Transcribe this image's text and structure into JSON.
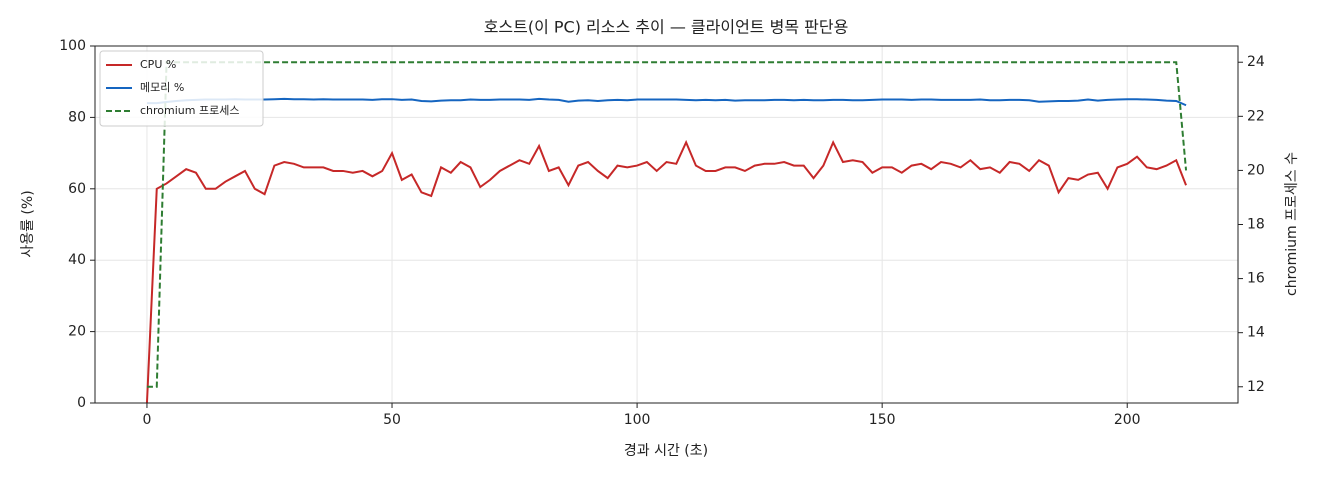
{
  "chart_data": {
    "type": "line",
    "title": "호스트(이 PC) 리소스 추이 — 클라이언트 병목 판단용",
    "xlabel": "경과 시간 (초)",
    "ylabel": "사용률 (%)",
    "y2label": "chromium 프로세스 수",
    "x": [
      0,
      2,
      4,
      6,
      8,
      10,
      12,
      14,
      16,
      18,
      20,
      22,
      24,
      26,
      28,
      30,
      32,
      34,
      36,
      38,
      40,
      42,
      44,
      46,
      48,
      50,
      52,
      54,
      56,
      58,
      60,
      62,
      64,
      66,
      68,
      70,
      72,
      74,
      76,
      78,
      80,
      82,
      84,
      86,
      88,
      90,
      92,
      94,
      96,
      98,
      100,
      102,
      104,
      106,
      108,
      110,
      112,
      114,
      116,
      118,
      120,
      122,
      124,
      126,
      128,
      130,
      132,
      134,
      136,
      138,
      140,
      142,
      144,
      146,
      148,
      150,
      152,
      154,
      156,
      158,
      160,
      162,
      164,
      166,
      168,
      170,
      172,
      174,
      176,
      178,
      180,
      182,
      184,
      186,
      188,
      190,
      192,
      194,
      196,
      198,
      200,
      202,
      204,
      206,
      208,
      210,
      212
    ],
    "series": [
      {
        "name": "CPU %",
        "color": "#c62828",
        "linestyle": "solid",
        "axis": "y",
        "values": [
          0,
          60,
          61.5,
          63.5,
          65.5,
          64.5,
          60,
          60,
          62,
          63.5,
          65,
          60,
          58.5,
          66.5,
          67.5,
          67,
          66,
          66,
          66,
          65,
          65,
          64.5,
          65,
          63.5,
          65,
          70,
          62.5,
          64,
          59,
          58,
          66,
          64.5,
          67.5,
          66,
          60.5,
          62.5,
          65,
          66.5,
          68,
          67,
          72,
          65,
          66,
          61,
          66.5,
          67.5,
          65,
          63,
          66.5,
          66,
          66.5,
          67.5,
          65,
          67.5,
          67,
          73,
          66.5,
          65,
          65,
          66,
          66,
          65,
          66.5,
          67,
          67,
          67.5,
          66.5,
          66.5,
          63,
          66.5,
          73,
          67.5,
          68,
          67.5,
          64.5,
          66,
          66,
          64.5,
          66.5,
          67,
          65.5,
          67.5,
          67,
          66,
          68,
          65.5,
          66,
          64.5,
          67.5,
          67,
          65,
          68,
          66.5,
          59,
          63,
          62.5,
          64,
          64.5,
          60,
          66,
          67,
          69,
          66,
          65.5,
          66.5,
          68,
          61
        ]
      },
      {
        "name": "메모리 %",
        "color": "#1565c0",
        "linestyle": "solid",
        "axis": "y",
        "values": [
          84,
          84,
          84.3,
          84.6,
          84.8,
          84.9,
          85,
          85,
          85,
          85.1,
          85,
          85,
          85,
          85.1,
          85.2,
          85.1,
          85.1,
          85,
          85.1,
          85,
          85,
          85,
          85,
          84.9,
          85.1,
          85.1,
          84.9,
          85,
          84.6,
          84.5,
          84.7,
          84.8,
          84.8,
          85,
          84.9,
          84.9,
          85,
          85,
          85,
          84.9,
          85.2,
          85,
          84.9,
          84.4,
          84.7,
          84.8,
          84.6,
          84.8,
          84.9,
          84.8,
          85,
          85,
          85,
          85,
          85,
          84.9,
          84.8,
          84.9,
          84.8,
          84.9,
          84.7,
          84.8,
          84.8,
          84.8,
          84.9,
          84.9,
          84.8,
          84.9,
          84.8,
          84.8,
          84.9,
          84.9,
          84.8,
          84.8,
          84.9,
          85,
          85,
          85,
          84.9,
          85,
          85,
          84.9,
          84.9,
          84.9,
          84.9,
          85,
          84.8,
          84.8,
          84.9,
          84.9,
          84.8,
          84.4,
          84.5,
          84.6,
          84.6,
          84.7,
          85,
          84.7,
          84.9,
          85,
          85.1,
          85.1,
          85,
          84.9,
          84.7,
          84.6,
          83.4
        ]
      },
      {
        "name": "chromium 프로세스",
        "color": "#2e7d32",
        "linestyle": "dashed",
        "axis": "y2",
        "values": [
          12,
          12,
          24,
          24,
          24,
          24,
          24,
          24,
          24,
          24,
          24,
          24,
          24,
          24,
          24,
          24,
          24,
          24,
          24,
          24,
          24,
          24,
          24,
          24,
          24,
          24,
          24,
          24,
          24,
          24,
          24,
          24,
          24,
          24,
          24,
          24,
          24,
          24,
          24,
          24,
          24,
          24,
          24,
          24,
          24,
          24,
          24,
          24,
          24,
          24,
          24,
          24,
          24,
          24,
          24,
          24,
          24,
          24,
          24,
          24,
          24,
          24,
          24,
          24,
          24,
          24,
          24,
          24,
          24,
          24,
          24,
          24,
          24,
          24,
          24,
          24,
          24,
          24,
          24,
          24,
          24,
          24,
          24,
          24,
          24,
          24,
          24,
          24,
          24,
          24,
          24,
          24,
          24,
          24,
          24,
          24,
          24,
          24,
          24,
          24,
          24,
          24,
          24,
          24,
          24,
          24,
          20
        ]
      }
    ],
    "xlim": [
      -10.6,
      222.6
    ],
    "xticks": [
      0,
      50,
      100,
      150,
      200
    ],
    "ylim": [
      0,
      100
    ],
    "yticks": [
      0,
      20,
      40,
      60,
      80,
      100
    ],
    "y2lim": [
      11.4,
      24.6
    ],
    "y2ticks": [
      12,
      14,
      16,
      18,
      20,
      22,
      24
    ],
    "grid": true,
    "legend": "upper-left"
  }
}
